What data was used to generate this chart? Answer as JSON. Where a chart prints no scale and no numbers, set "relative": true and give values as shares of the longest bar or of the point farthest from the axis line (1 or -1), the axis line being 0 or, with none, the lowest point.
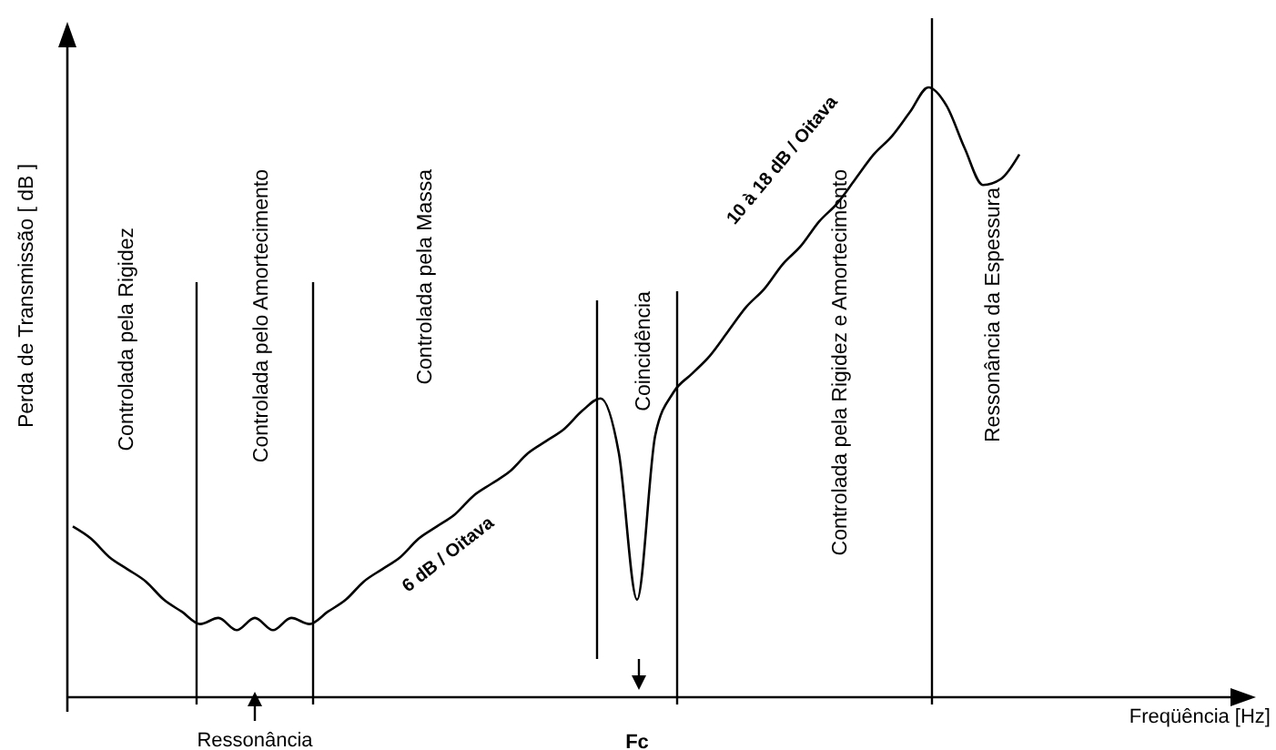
{
  "chart_data": {
    "type": "line",
    "relative": true,
    "ylabel": "Perda de Transmissão  [ dB ]",
    "categories": [
      null,
      null,
      null,
      null,
      null,
      null,
      null,
      null,
      null,
      null,
      null,
      null,
      null,
      null,
      null,
      null,
      null,
      null,
      null,
      null,
      null,
      null,
      null,
      null,
      null,
      null,
      null,
      null,
      null,
      null,
      null,
      null,
      null,
      null,
      null,
      null,
      null,
      null,
      null,
      null,
      null,
      null,
      null,
      null,
      null,
      null,
      null,
      null,
      null,
      null,
      null,
      null,
      null
    ],
    "series": [
      {
        "color": "#000000",
        "values": [
          0.28,
          0.26,
          0.23,
          0.21,
          0.19,
          0.16,
          0.14,
          0.12,
          0.13,
          0.11,
          0.13,
          0.11,
          0.13,
          0.12,
          0.14,
          0.16,
          0.19,
          0.21,
          0.23,
          0.26,
          0.28,
          0.3,
          0.33,
          0.35,
          0.37,
          0.4,
          0.42,
          0.44,
          0.47,
          0.49,
          0.4,
          0.16,
          0.43,
          0.5,
          0.53,
          0.56,
          0.6,
          0.64,
          0.67,
          0.71,
          0.74,
          0.78,
          0.81,
          0.85,
          0.89,
          0.92,
          0.96,
          1,
          0.97,
          0.9,
          0.84,
          0.85,
          0.89
        ]
      }
    ],
    "annotations": [
      "Controlada pela Rigidez",
      "Controlada pelo Amortecimento",
      "Controlada pela Massa",
      "Coincidência",
      "Controlada pela Rigidez e Amortecimento",
      "Ressonância da Espessura",
      "6 dB /  Oitava",
      "10 à 18 dB /   Oitava",
      "Ressonância",
      "Fc",
      "Freqüência [Hz]"
    ],
    "line_style": "solid"
  }
}
